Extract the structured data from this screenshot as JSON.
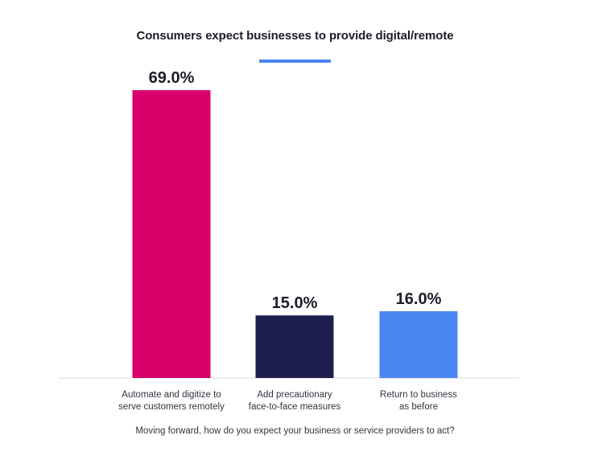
{
  "chart_data": {
    "type": "bar",
    "title": "Consumers expect businesses to provide digital/remote",
    "xlabel": "Moving forward, how do you expect your business or service providers to act?",
    "ylabel": "",
    "ylim": [
      0,
      75
    ],
    "grid": false,
    "legend": "none",
    "value_suffix": "%",
    "categories": [
      [
        "Automate and digitize to",
        "serve customers remotely"
      ],
      [
        "Add precautionary",
        "face-to-face measures"
      ],
      [
        "Return to business",
        "as before"
      ]
    ],
    "values": [
      69.0,
      15.0,
      16.0
    ],
    "value_labels": [
      "69.0%",
      "15.0%",
      "16.0%"
    ],
    "colors": [
      "#d9006b",
      "#1e1e4f",
      "#4a86f2"
    ]
  },
  "accent_color": "#4a86f2"
}
